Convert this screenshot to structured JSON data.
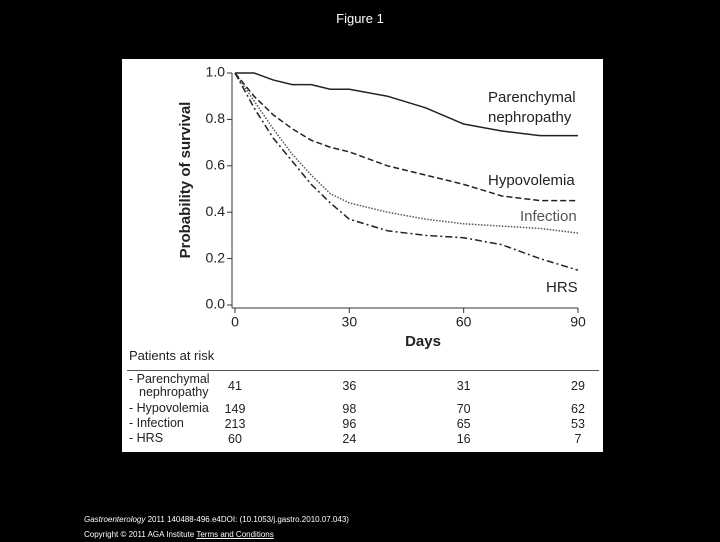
{
  "header": {
    "title": "Figure 1"
  },
  "chart_data": {
    "type": "line",
    "y_label": "Probability of survival",
    "x_label": "Days",
    "x": [
      0,
      5,
      10,
      15,
      20,
      25,
      30,
      40,
      50,
      60,
      70,
      80,
      90
    ],
    "xlim": [
      0,
      90
    ],
    "xticks": [
      0,
      30,
      60,
      90
    ],
    "ylim": [
      0,
      1
    ],
    "yticks": [
      {
        "value": 0,
        "label": "0.0"
      },
      0.2,
      0.4,
      0.6,
      0.8,
      {
        "value": 1,
        "label": "1.0"
      }
    ],
    "series": [
      {
        "name": "Parenchymal nephropathy",
        "color": "#222222",
        "dash": "solid",
        "values": [
          1,
          1,
          0.97,
          0.95,
          0.95,
          0.93,
          0.93,
          0.9,
          0.85,
          0.78,
          0.75,
          0.73,
          0.73
        ]
      },
      {
        "name": "Hypovolemia",
        "color": "#222222",
        "dash": "dashed",
        "values": [
          1,
          0.9,
          0.82,
          0.76,
          0.71,
          0.68,
          0.66,
          0.6,
          0.56,
          0.52,
          0.47,
          0.45,
          0.45
        ]
      },
      {
        "name": "Infection",
        "color": "#555555",
        "dash": "dotted",
        "values": [
          1,
          0.88,
          0.76,
          0.65,
          0.56,
          0.48,
          0.44,
          0.4,
          0.37,
          0.35,
          0.34,
          0.33,
          0.31
        ]
      },
      {
        "name": "HRS",
        "color": "#222222",
        "dash": "dashdot",
        "values": [
          1,
          0.85,
          0.72,
          0.62,
          0.52,
          0.44,
          0.37,
          0.32,
          0.3,
          0.29,
          0.26,
          0.2,
          0.15
        ]
      }
    ]
  },
  "risk_table": {
    "title": "Patients at risk",
    "rows": [
      {
        "label": "- Parenchymal nephropathy",
        "counts": [
          "41",
          "36",
          "31",
          "29"
        ]
      },
      {
        "label": "- Hypovolemia",
        "counts": [
          "149",
          "98",
          "70",
          "62"
        ]
      },
      {
        "label": "- Infection",
        "counts": [
          "213",
          "96",
          "65",
          "53"
        ]
      },
      {
        "label": "- HRS",
        "counts": [
          "60",
          "24",
          "16",
          "7"
        ]
      }
    ]
  },
  "footer": {
    "journal": "Gastroenterology",
    "citation": "2011 140488-496.e4DOI: (10.1053/j.gastro.2010.07.043)",
    "copyright": "Copyright © 2011 AGA Institute",
    "link": "Terms and Conditions"
  }
}
